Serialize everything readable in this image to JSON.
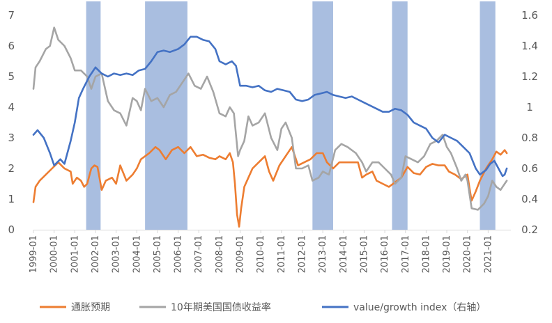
{
  "chart_data": {
    "type": "line",
    "title": "",
    "colors": {
      "inflation": "#ED7D31",
      "yield": "#A5A5A5",
      "ratio": "#4472C4",
      "shade": "#A9BEE0",
      "axis": "#D9D9D9",
      "text": "#595959"
    },
    "left_axis": {
      "ylim": [
        0,
        7
      ],
      "ticks": [
        "0",
        "1",
        "2",
        "3",
        "4",
        "5",
        "6",
        "7"
      ]
    },
    "right_axis": {
      "ylim": [
        0.2,
        1.6
      ],
      "ticks": [
        "0.2",
        "0.4",
        "0.6",
        "0.8",
        "1",
        "1.2",
        "1.4",
        "1.6"
      ]
    },
    "x_range": [
      1999.0,
      2022.1
    ],
    "x_ticks": [
      "1999-01",
      "2000-01",
      "2001-01",
      "2002-01",
      "2003-01",
      "2004-01",
      "2005-01",
      "2006-01",
      "2007-01",
      "2008-01",
      "2009-01",
      "2010-01",
      "2011-01",
      "2012-01",
      "2013-01",
      "2014-01",
      "2015-01",
      "2016-01",
      "2017-01",
      "2018-01",
      "2019-01",
      "2020-01",
      "2021-01"
    ],
    "shaded_periods": [
      [
        2001.55,
        2002.25
      ],
      [
        2004.4,
        2006.45
      ],
      [
        2012.5,
        2013.5
      ],
      [
        2016.35,
        2017.1
      ],
      [
        2020.6,
        2021.35
      ]
    ],
    "series": [
      {
        "name": "通胀预期",
        "key": "inflation",
        "axis": "left",
        "points": [
          [
            1999.0,
            0.9
          ],
          [
            1999.1,
            1.4
          ],
          [
            1999.3,
            1.6
          ],
          [
            1999.6,
            1.8
          ],
          [
            1999.9,
            2.0
          ],
          [
            2000.2,
            2.2
          ],
          [
            2000.5,
            2.0
          ],
          [
            2000.8,
            1.9
          ],
          [
            2000.9,
            1.5
          ],
          [
            2001.1,
            1.7
          ],
          [
            2001.3,
            1.6
          ],
          [
            2001.45,
            1.4
          ],
          [
            2001.6,
            1.5
          ],
          [
            2001.8,
            2.0
          ],
          [
            2001.95,
            2.1
          ],
          [
            2002.1,
            2.05
          ],
          [
            2002.3,
            1.3
          ],
          [
            2002.5,
            1.6
          ],
          [
            2002.8,
            1.7
          ],
          [
            2003.0,
            1.5
          ],
          [
            2003.2,
            2.1
          ],
          [
            2003.5,
            1.6
          ],
          [
            2003.8,
            1.8
          ],
          [
            2004.0,
            2.0
          ],
          [
            2004.2,
            2.3
          ],
          [
            2004.6,
            2.5
          ],
          [
            2004.9,
            2.7
          ],
          [
            2005.1,
            2.6
          ],
          [
            2005.4,
            2.3
          ],
          [
            2005.7,
            2.6
          ],
          [
            2006.0,
            2.7
          ],
          [
            2006.3,
            2.5
          ],
          [
            2006.6,
            2.7
          ],
          [
            2006.9,
            2.4
          ],
          [
            2007.2,
            2.45
          ],
          [
            2007.5,
            2.35
          ],
          [
            2007.8,
            2.3
          ],
          [
            2008.0,
            2.4
          ],
          [
            2008.3,
            2.3
          ],
          [
            2008.5,
            2.5
          ],
          [
            2008.65,
            2.2
          ],
          [
            2008.75,
            1.5
          ],
          [
            2008.85,
            0.5
          ],
          [
            2008.95,
            0.1
          ],
          [
            2009.05,
            0.7
          ],
          [
            2009.2,
            1.4
          ],
          [
            2009.4,
            1.7
          ],
          [
            2009.6,
            2.0
          ],
          [
            2009.9,
            2.2
          ],
          [
            2010.2,
            2.4
          ],
          [
            2010.4,
            1.9
          ],
          [
            2010.6,
            1.6
          ],
          [
            2010.9,
            2.1
          ],
          [
            2011.2,
            2.4
          ],
          [
            2011.5,
            2.7
          ],
          [
            2011.8,
            2.1
          ],
          [
            2012.1,
            2.2
          ],
          [
            2012.4,
            2.3
          ],
          [
            2012.7,
            2.5
          ],
          [
            2013.0,
            2.5
          ],
          [
            2013.2,
            2.2
          ],
          [
            2013.5,
            2.0
          ],
          [
            2013.8,
            2.2
          ],
          [
            2014.1,
            2.2
          ],
          [
            2014.4,
            2.2
          ],
          [
            2014.7,
            2.2
          ],
          [
            2014.9,
            1.7
          ],
          [
            2015.1,
            1.8
          ],
          [
            2015.4,
            1.9
          ],
          [
            2015.6,
            1.6
          ],
          [
            2015.9,
            1.5
          ],
          [
            2016.2,
            1.4
          ],
          [
            2016.5,
            1.55
          ],
          [
            2016.8,
            1.7
          ],
          [
            2017.1,
            2.05
          ],
          [
            2017.4,
            1.85
          ],
          [
            2017.7,
            1.8
          ],
          [
            2018.0,
            2.05
          ],
          [
            2018.3,
            2.15
          ],
          [
            2018.6,
            2.1
          ],
          [
            2018.9,
            2.1
          ],
          [
            2019.1,
            1.9
          ],
          [
            2019.4,
            1.8
          ],
          [
            2019.7,
            1.65
          ],
          [
            2020.0,
            1.8
          ],
          [
            2020.1,
            1.35
          ],
          [
            2020.2,
            0.95
          ],
          [
            2020.4,
            1.25
          ],
          [
            2020.6,
            1.6
          ],
          [
            2020.9,
            2.0
          ],
          [
            2021.2,
            2.3
          ],
          [
            2021.4,
            2.55
          ],
          [
            2021.6,
            2.45
          ],
          [
            2021.8,
            2.6
          ],
          [
            2021.9,
            2.5
          ]
        ]
      },
      {
        "name": "10年期美国国债收益率",
        "key": "yield",
        "axis": "left",
        "points": [
          [
            1999.0,
            4.6
          ],
          [
            1999.1,
            5.3
          ],
          [
            1999.3,
            5.5
          ],
          [
            1999.6,
            5.9
          ],
          [
            1999.8,
            6.0
          ],
          [
            2000.0,
            6.6
          ],
          [
            2000.2,
            6.2
          ],
          [
            2000.5,
            6.0
          ],
          [
            2000.8,
            5.6
          ],
          [
            2001.0,
            5.2
          ],
          [
            2001.3,
            5.2
          ],
          [
            2001.6,
            5.0
          ],
          [
            2001.8,
            4.6
          ],
          [
            2002.0,
            5.0
          ],
          [
            2002.3,
            5.1
          ],
          [
            2002.6,
            4.2
          ],
          [
            2002.9,
            3.9
          ],
          [
            2003.2,
            3.8
          ],
          [
            2003.5,
            3.4
          ],
          [
            2003.8,
            4.3
          ],
          [
            2004.0,
            4.2
          ],
          [
            2004.2,
            3.9
          ],
          [
            2004.4,
            4.6
          ],
          [
            2004.7,
            4.2
          ],
          [
            2005.0,
            4.3
          ],
          [
            2005.3,
            4.0
          ],
          [
            2005.6,
            4.4
          ],
          [
            2005.9,
            4.5
          ],
          [
            2006.2,
            4.8
          ],
          [
            2006.5,
            5.1
          ],
          [
            2006.8,
            4.7
          ],
          [
            2007.1,
            4.6
          ],
          [
            2007.4,
            5.0
          ],
          [
            2007.7,
            4.5
          ],
          [
            2008.0,
            3.8
          ],
          [
            2008.3,
            3.7
          ],
          [
            2008.5,
            4.0
          ],
          [
            2008.7,
            3.8
          ],
          [
            2008.9,
            2.4
          ],
          [
            2009.0,
            2.6
          ],
          [
            2009.2,
            2.9
          ],
          [
            2009.4,
            3.7
          ],
          [
            2009.6,
            3.4
          ],
          [
            2009.9,
            3.5
          ],
          [
            2010.2,
            3.8
          ],
          [
            2010.5,
            3.0
          ],
          [
            2010.8,
            2.6
          ],
          [
            2011.0,
            3.3
          ],
          [
            2011.2,
            3.5
          ],
          [
            2011.5,
            3.0
          ],
          [
            2011.7,
            2.0
          ],
          [
            2012.0,
            2.0
          ],
          [
            2012.3,
            2.1
          ],
          [
            2012.5,
            1.6
          ],
          [
            2012.8,
            1.7
          ],
          [
            2013.0,
            1.9
          ],
          [
            2013.3,
            1.8
          ],
          [
            2013.6,
            2.6
          ],
          [
            2013.9,
            2.8
          ],
          [
            2014.2,
            2.7
          ],
          [
            2014.6,
            2.5
          ],
          [
            2014.9,
            2.2
          ],
          [
            2015.1,
            1.9
          ],
          [
            2015.4,
            2.2
          ],
          [
            2015.7,
            2.2
          ],
          [
            2016.0,
            2.0
          ],
          [
            2016.3,
            1.8
          ],
          [
            2016.5,
            1.5
          ],
          [
            2016.8,
            1.7
          ],
          [
            2017.0,
            2.4
          ],
          [
            2017.3,
            2.3
          ],
          [
            2017.6,
            2.2
          ],
          [
            2017.9,
            2.4
          ],
          [
            2018.2,
            2.8
          ],
          [
            2018.5,
            2.9
          ],
          [
            2018.8,
            3.1
          ],
          [
            2019.0,
            2.7
          ],
          [
            2019.2,
            2.5
          ],
          [
            2019.5,
            2.0
          ],
          [
            2019.7,
            1.6
          ],
          [
            2019.9,
            1.8
          ],
          [
            2020.0,
            1.6
          ],
          [
            2020.2,
            0.7
          ],
          [
            2020.5,
            0.65
          ],
          [
            2020.8,
            0.85
          ],
          [
            2021.0,
            1.1
          ],
          [
            2021.2,
            1.6
          ],
          [
            2021.4,
            1.4
          ],
          [
            2021.6,
            1.3
          ],
          [
            2021.8,
            1.5
          ],
          [
            2021.9,
            1.6
          ]
        ]
      },
      {
        "name": "value/growth index（右轴）",
        "key": "ratio",
        "axis": "right",
        "points": [
          [
            1999.0,
            0.82
          ],
          [
            1999.2,
            0.85
          ],
          [
            1999.5,
            0.8
          ],
          [
            1999.8,
            0.7
          ],
          [
            2000.0,
            0.62
          ],
          [
            2000.3,
            0.66
          ],
          [
            2000.5,
            0.63
          ],
          [
            2000.8,
            0.78
          ],
          [
            2001.0,
            0.9
          ],
          [
            2001.2,
            1.06
          ],
          [
            2001.4,
            1.12
          ],
          [
            2001.7,
            1.2
          ],
          [
            2002.0,
            1.26
          ],
          [
            2002.3,
            1.22
          ],
          [
            2002.6,
            1.2
          ],
          [
            2002.9,
            1.22
          ],
          [
            2003.2,
            1.21
          ],
          [
            2003.5,
            1.22
          ],
          [
            2003.8,
            1.21
          ],
          [
            2004.1,
            1.24
          ],
          [
            2004.4,
            1.25
          ],
          [
            2004.7,
            1.3
          ],
          [
            2005.0,
            1.36
          ],
          [
            2005.3,
            1.37
          ],
          [
            2005.6,
            1.36
          ],
          [
            2006.0,
            1.38
          ],
          [
            2006.3,
            1.41
          ],
          [
            2006.6,
            1.46
          ],
          [
            2006.9,
            1.46
          ],
          [
            2007.2,
            1.44
          ],
          [
            2007.5,
            1.43
          ],
          [
            2007.8,
            1.38
          ],
          [
            2008.0,
            1.3
          ],
          [
            2008.3,
            1.28
          ],
          [
            2008.6,
            1.3
          ],
          [
            2008.8,
            1.27
          ],
          [
            2009.0,
            1.14
          ],
          [
            2009.3,
            1.14
          ],
          [
            2009.6,
            1.13
          ],
          [
            2009.9,
            1.14
          ],
          [
            2010.2,
            1.11
          ],
          [
            2010.5,
            1.1
          ],
          [
            2010.8,
            1.12
          ],
          [
            2011.1,
            1.11
          ],
          [
            2011.4,
            1.1
          ],
          [
            2011.7,
            1.05
          ],
          [
            2012.0,
            1.04
          ],
          [
            2012.3,
            1.05
          ],
          [
            2012.6,
            1.08
          ],
          [
            2012.9,
            1.09
          ],
          [
            2013.2,
            1.1
          ],
          [
            2013.5,
            1.08
          ],
          [
            2013.8,
            1.07
          ],
          [
            2014.1,
            1.06
          ],
          [
            2014.4,
            1.07
          ],
          [
            2014.7,
            1.05
          ],
          [
            2015.0,
            1.03
          ],
          [
            2015.3,
            1.01
          ],
          [
            2015.6,
            0.99
          ],
          [
            2015.9,
            0.97
          ],
          [
            2016.2,
            0.97
          ],
          [
            2016.5,
            0.99
          ],
          [
            2016.8,
            0.98
          ],
          [
            2017.1,
            0.95
          ],
          [
            2017.4,
            0.9
          ],
          [
            2017.7,
            0.88
          ],
          [
            2018.0,
            0.86
          ],
          [
            2018.3,
            0.8
          ],
          [
            2018.6,
            0.77
          ],
          [
            2018.9,
            0.82
          ],
          [
            2019.2,
            0.8
          ],
          [
            2019.5,
            0.78
          ],
          [
            2019.8,
            0.74
          ],
          [
            2020.1,
            0.7
          ],
          [
            2020.4,
            0.6
          ],
          [
            2020.6,
            0.56
          ],
          [
            2020.9,
            0.59
          ],
          [
            2021.1,
            0.63
          ],
          [
            2021.3,
            0.65
          ],
          [
            2021.5,
            0.6
          ],
          [
            2021.7,
            0.55
          ],
          [
            2021.8,
            0.56
          ],
          [
            2021.9,
            0.6
          ]
        ]
      }
    ],
    "legend": [
      "通胀预期",
      "10年期美国国债收益率",
      "value/growth index（右轴）"
    ]
  }
}
